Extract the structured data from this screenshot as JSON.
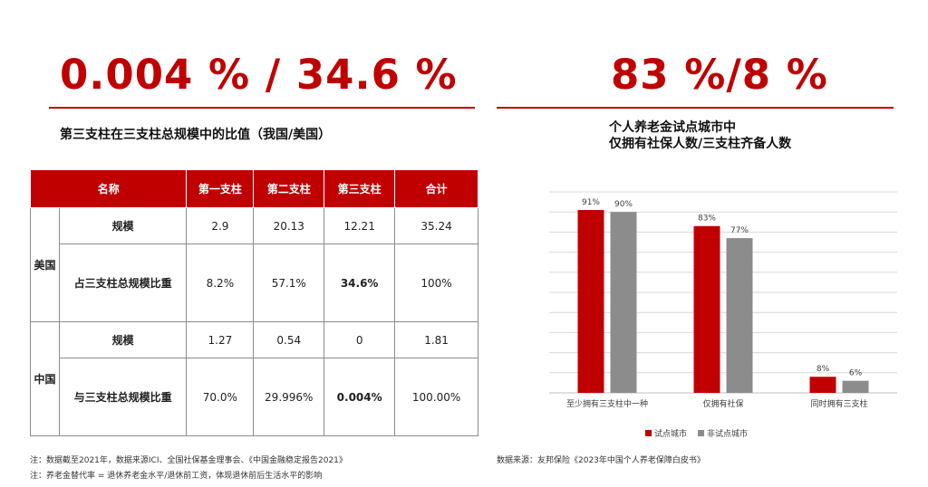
{
  "left": {
    "big_number": "0.004 % / 34.6 %",
    "subtitle": "第三支柱在三支柱总规模中的比值（我国/美国）",
    "table": {
      "headers": [
        "名称",
        "第一支柱",
        "第二支柱",
        "第三支柱",
        "合计"
      ],
      "groups": [
        {
          "country": "美国",
          "rows": [
            {
              "label": "规模",
              "values": [
                "2.9",
                "20.13",
                "12.21",
                "35.24"
              ]
            },
            {
              "label": "占三支柱总规模比重",
              "values": [
                "8.2%",
                "57.1%",
                "34.6%",
                "100%"
              ]
            }
          ]
        },
        {
          "country": "中国",
          "rows": [
            {
              "label": "规模",
              "values": [
                "1.27",
                "0.54",
                "0",
                "1.81"
              ]
            },
            {
              "label": "与三支柱总规模比重",
              "values": [
                "70.0%",
                "29.996%",
                "0.004%",
                "100.00%"
              ]
            }
          ]
        }
      ]
    },
    "notes": [
      "注：数据截至2021年，数据来源ICI、全国社保基金理事会、《中国金融稳定报告2021》",
      "注：养老金替代率 = 退休养老金水平/退休前工资，体现退休前后生活水平的影响"
    ]
  },
  "right": {
    "big_number": "83 %/8 %",
    "subtitle_line1": "个人养老金试点城市中",
    "subtitle_line2": "仅拥有社保人数/三支柱齐备人数",
    "source": "数据来源：友邦保险《2023年中国个人养老保障白皮书》"
  },
  "colors": {
    "accent": "#c00000",
    "series_gray": "#8c8c8c"
  },
  "chart_data": {
    "type": "bar",
    "categories": [
      "至少拥有三支柱中一种",
      "仅拥有社保",
      "同时拥有三支柱"
    ],
    "series": [
      {
        "name": "试点城市",
        "values": [
          91,
          83,
          8
        ],
        "labels": [
          "91%",
          "83%",
          "8%"
        ],
        "color": "#c00000"
      },
      {
        "name": "非试点城市",
        "values": [
          90,
          77,
          6
        ],
        "labels": [
          "90%",
          "77%",
          "6%"
        ],
        "color": "#8c8c8c"
      }
    ],
    "ylim": [
      0,
      100
    ],
    "grid": true,
    "legend": "bottom-center",
    "title": "",
    "xlabel": "",
    "ylabel": ""
  }
}
